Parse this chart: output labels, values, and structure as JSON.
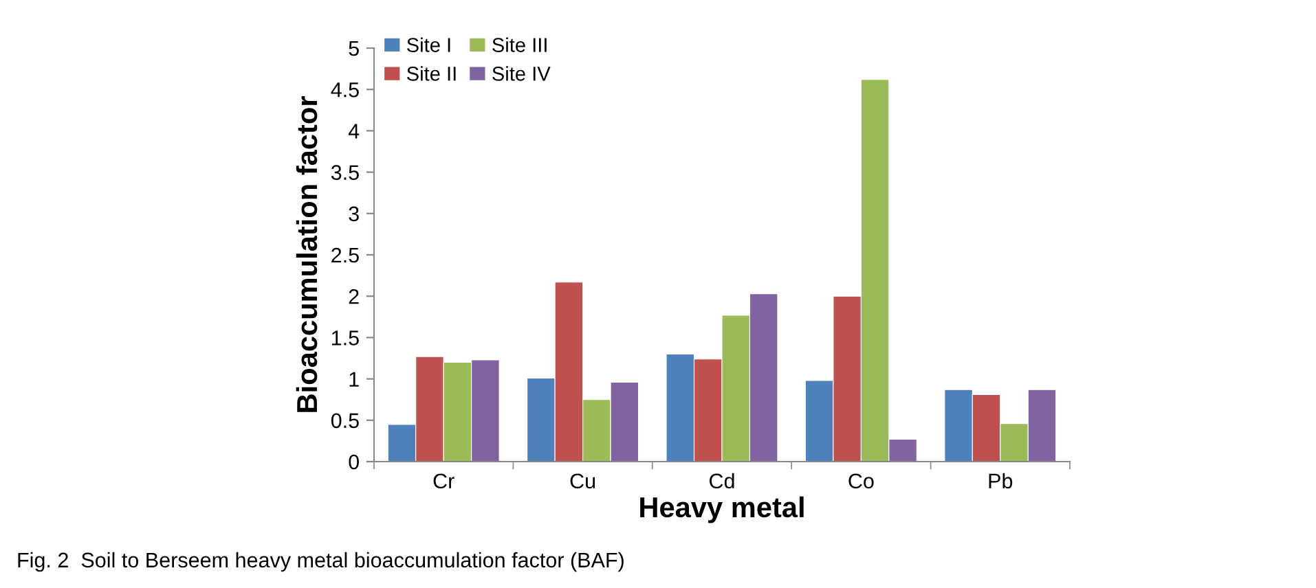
{
  "chart_data": {
    "type": "bar",
    "xlabel": "Heavy metal",
    "ylabel": "Bioaccumulation factor",
    "categories": [
      "Cr",
      "Cu",
      "Cd",
      "Co",
      "Pb"
    ],
    "series": [
      {
        "name": "Site I",
        "color": "#4f81bd",
        "values": [
          0.45,
          1.01,
          1.3,
          0.98,
          0.87
        ]
      },
      {
        "name": "Site II",
        "color": "#c0504d",
        "values": [
          1.27,
          2.17,
          1.24,
          2.0,
          0.81
        ]
      },
      {
        "name": "Site III",
        "color": "#9bbb59",
        "values": [
          1.2,
          0.75,
          1.77,
          4.62,
          0.46
        ]
      },
      {
        "name": "Site IV",
        "color": "#8064a2",
        "values": [
          1.23,
          0.96,
          2.03,
          0.27,
          0.87
        ]
      }
    ],
    "ylim": [
      0,
      5
    ],
    "yticks": [
      0,
      0.5,
      1,
      1.5,
      2,
      2.5,
      3,
      3.5,
      4,
      4.5,
      5
    ],
    "grid": false,
    "legend": "top left",
    "annotations": [
      "Fig. 2  Soil to Berseem heavy metal bioaccumulation factor (BAF)"
    ]
  }
}
